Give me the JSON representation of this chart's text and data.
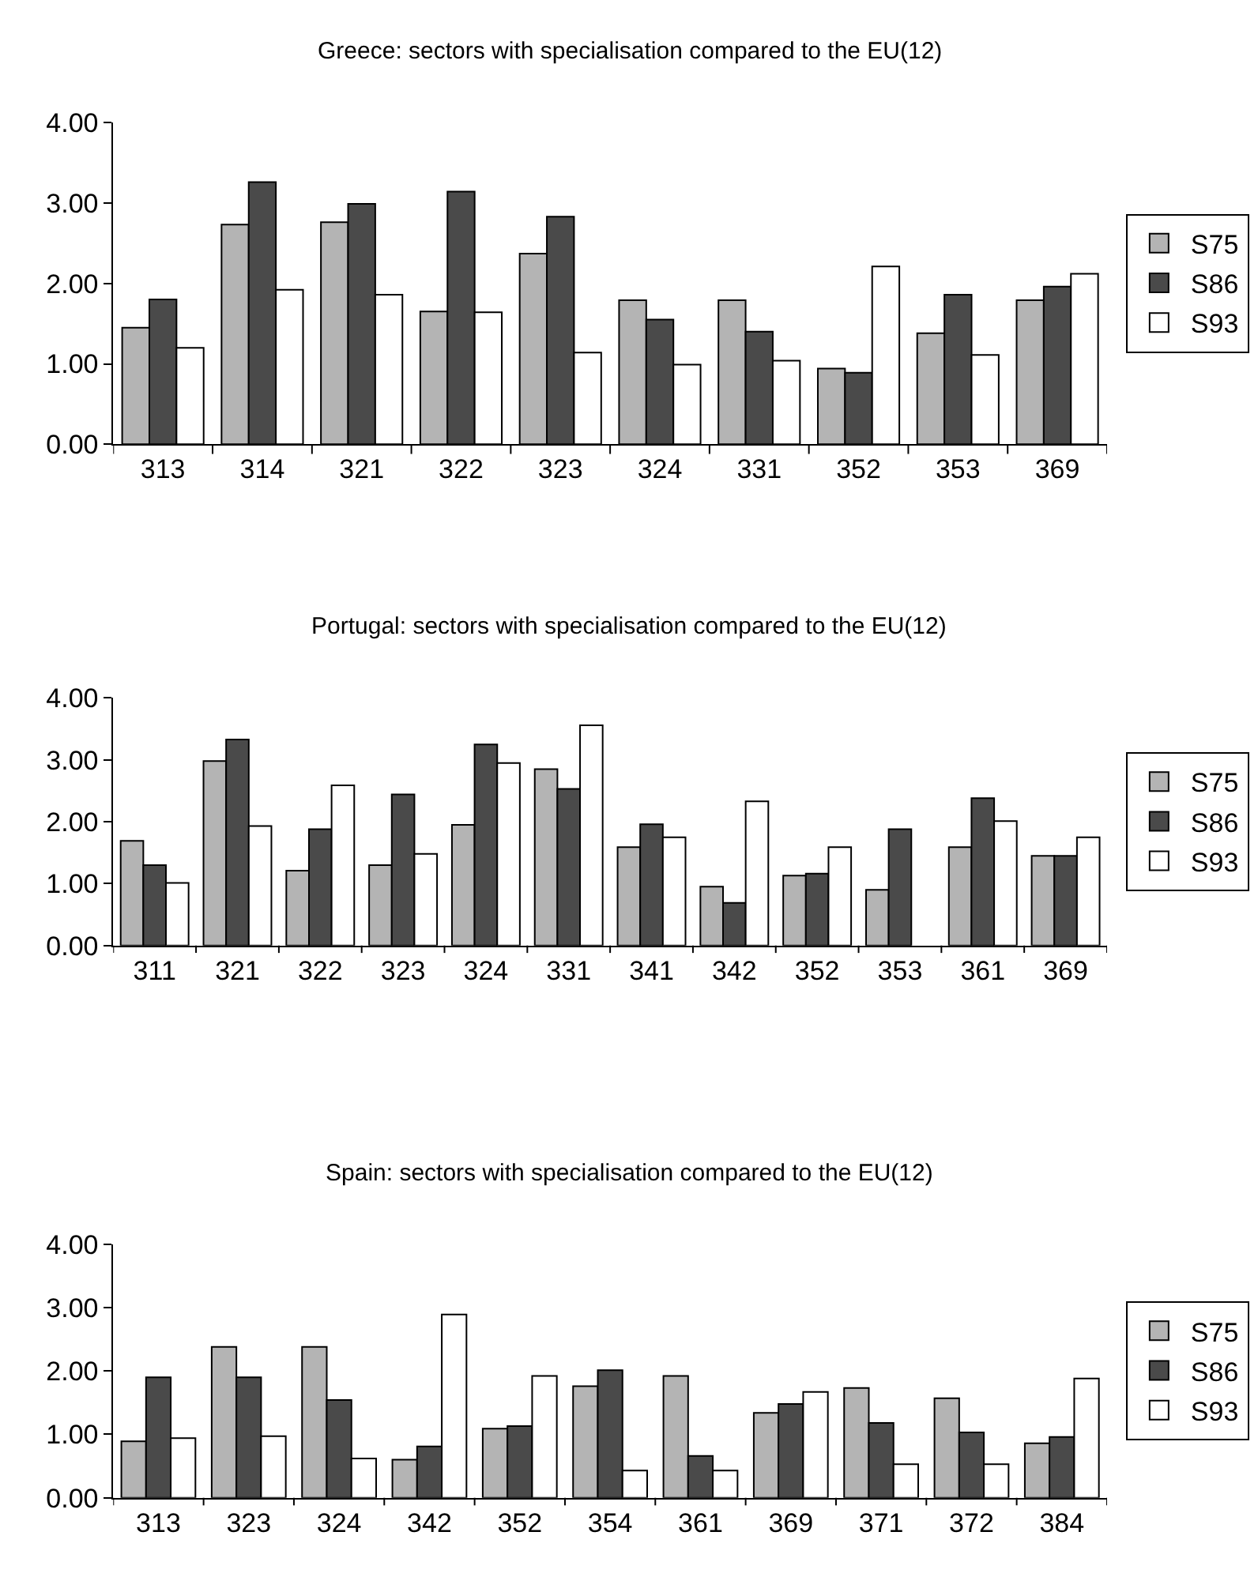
{
  "chart_data": [
    {
      "type": "bar",
      "title": "Greece: sectors with specialisation compared to the EU(12)",
      "categories": [
        "313",
        "314",
        "321",
        "322",
        "323",
        "324",
        "331",
        "352",
        "353",
        "369"
      ],
      "series": [
        {
          "name": "S75",
          "color": "#b4b4b4",
          "values": [
            1.45,
            2.73,
            2.76,
            1.65,
            2.37,
            1.79,
            1.79,
            0.94,
            1.38,
            1.79
          ]
        },
        {
          "name": "S86",
          "color": "#4a4a4a",
          "values": [
            1.8,
            3.26,
            2.99,
            3.14,
            2.83,
            1.55,
            1.4,
            0.89,
            1.86,
            1.96
          ]
        },
        {
          "name": "S93",
          "color": "#ffffff",
          "values": [
            1.2,
            1.92,
            1.86,
            1.64,
            1.14,
            0.99,
            1.04,
            2.21,
            1.11,
            2.12
          ]
        }
      ],
      "ylim": [
        0,
        4
      ],
      "yticks": [
        {
          "value": 0,
          "label": "0.00"
        },
        {
          "value": 1,
          "label": "1.00"
        },
        {
          "value": 2,
          "label": "2.00"
        },
        {
          "value": 3,
          "label": "3.00"
        },
        {
          "value": 4,
          "label": "4.00"
        }
      ],
      "grid": false,
      "legend": "right"
    },
    {
      "type": "bar",
      "title": "Portugal: sectors with specialisation compared to the EU(12)",
      "categories": [
        "311",
        "321",
        "322",
        "323",
        "324",
        "331",
        "341",
        "342",
        "352",
        "353",
        "361",
        "369"
      ],
      "series": [
        {
          "name": "S75",
          "color": "#b4b4b4",
          "values": [
            1.69,
            2.98,
            1.21,
            1.3,
            1.95,
            2.85,
            1.59,
            0.95,
            1.13,
            0.9,
            1.59,
            1.45
          ]
        },
        {
          "name": "S86",
          "color": "#4a4a4a",
          "values": [
            1.3,
            3.33,
            1.88,
            2.44,
            3.25,
            2.53,
            1.96,
            0.69,
            1.16,
            1.88,
            2.38,
            1.45
          ]
        },
        {
          "name": "S93",
          "color": "#ffffff",
          "values": [
            1.01,
            1.93,
            2.59,
            1.48,
            2.95,
            3.56,
            1.75,
            2.33,
            1.59,
            null,
            2.01,
            1.75
          ]
        }
      ],
      "ylim": [
        0,
        4
      ],
      "yticks": [
        {
          "value": 0,
          "label": "0.00"
        },
        {
          "value": 1,
          "label": "1.00"
        },
        {
          "value": 2,
          "label": "2.00"
        },
        {
          "value": 3,
          "label": "3.00"
        },
        {
          "value": 4,
          "label": "4.00"
        }
      ],
      "grid": false,
      "legend": "right"
    },
    {
      "type": "bar",
      "title": "Spain: sectors with specialisation compared to the EU(12)",
      "categories": [
        "313",
        "323",
        "324",
        "342",
        "352",
        "354",
        "361",
        "369",
        "371",
        "372",
        "384"
      ],
      "series": [
        {
          "name": "S75",
          "color": "#b4b4b4",
          "values": [
            0.89,
            2.38,
            2.38,
            0.6,
            1.09,
            1.76,
            1.92,
            1.34,
            1.73,
            1.57,
            0.86
          ]
        },
        {
          "name": "S86",
          "color": "#4a4a4a",
          "values": [
            1.9,
            1.9,
            1.54,
            0.81,
            1.13,
            2.01,
            0.66,
            1.48,
            1.18,
            1.03,
            0.96
          ]
        },
        {
          "name": "S93",
          "color": "#ffffff",
          "values": [
            0.94,
            0.97,
            0.62,
            2.89,
            1.92,
            0.43,
            0.43,
            1.67,
            0.53,
            0.53,
            1.88
          ]
        }
      ],
      "ylim": [
        0,
        4
      ],
      "yticks": [
        {
          "value": 0,
          "label": "0.00"
        },
        {
          "value": 1,
          "label": "1.00"
        },
        {
          "value": 2,
          "label": "2.00"
        },
        {
          "value": 3,
          "label": "3.00"
        },
        {
          "value": 4,
          "label": "4.00"
        }
      ],
      "grid": false,
      "legend": "right"
    }
  ]
}
